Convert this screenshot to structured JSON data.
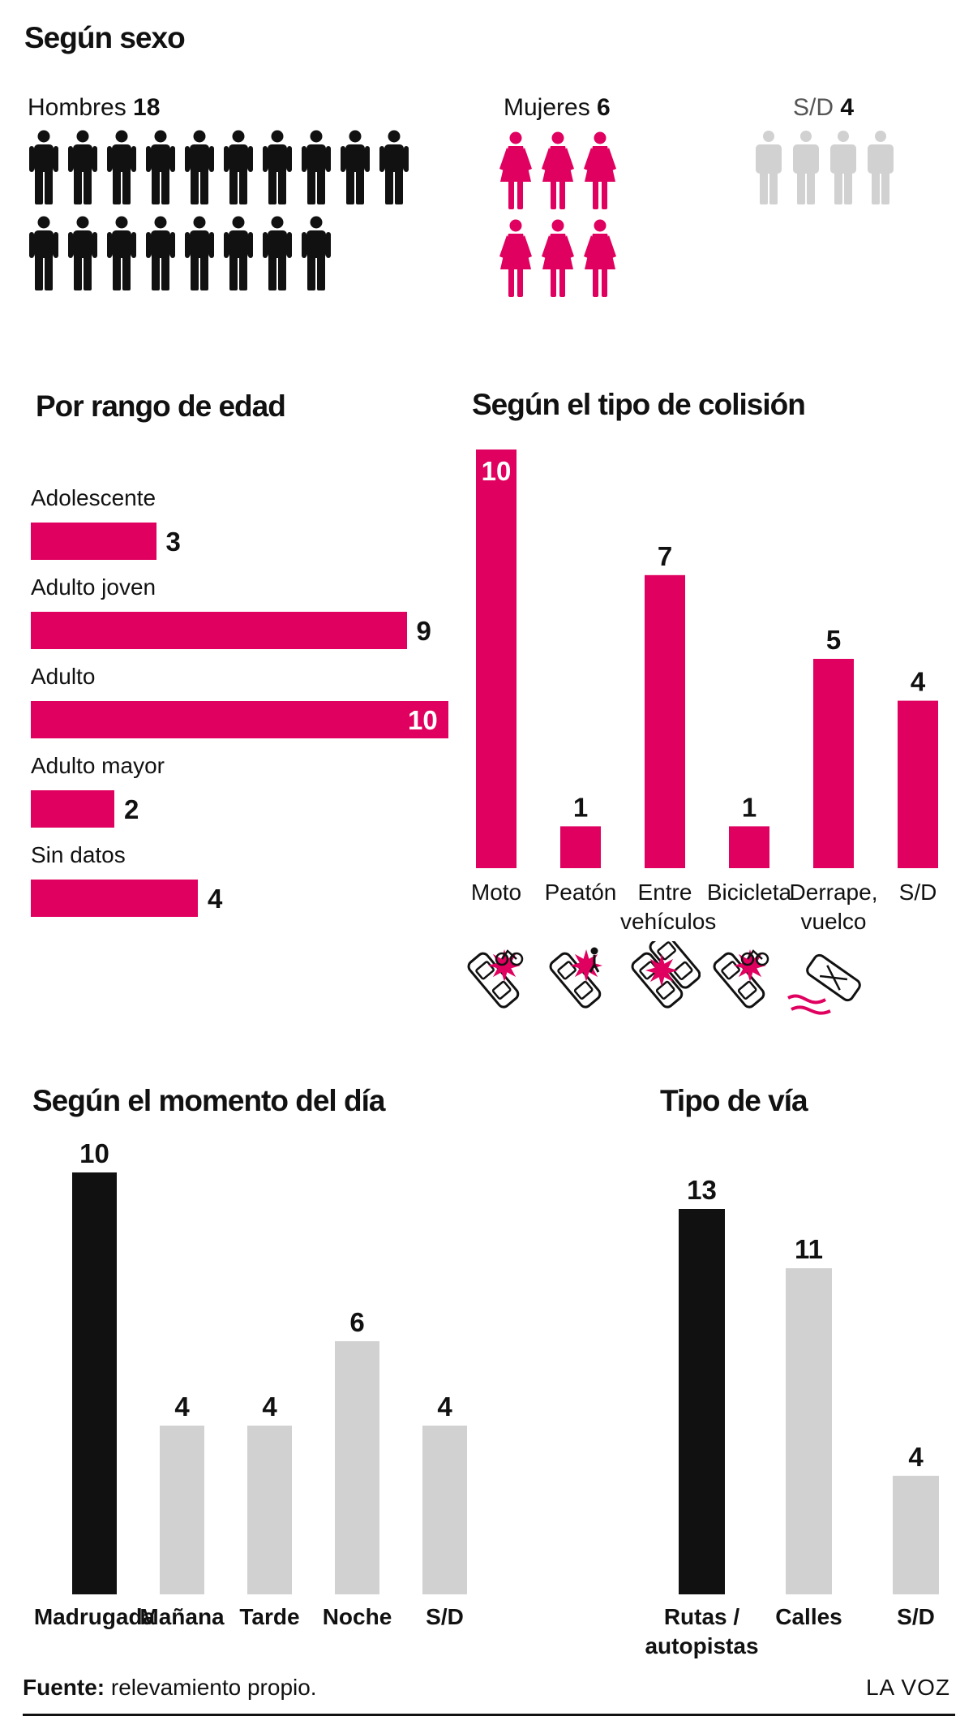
{
  "gender": {
    "title": "Según sexo",
    "groups": [
      {
        "label": "Hombres",
        "value": 18,
        "count": 18,
        "color": "#111111",
        "figure": "man"
      },
      {
        "label": "Mujeres",
        "value": 6,
        "count": 6,
        "color": "#e0005f",
        "figure": "woman"
      },
      {
        "label": "S/D",
        "value": 4,
        "count": 4,
        "color": "#d1d1d1",
        "figure": "person"
      }
    ]
  },
  "chart_data": [
    {
      "type": "bar",
      "orientation": "horizontal",
      "title": "Por rango de edad",
      "categories": [
        "Adolescente",
        "Adulto joven",
        "Adulto",
        "Adulto mayor",
        "Sin datos"
      ],
      "values": [
        3,
        9,
        10,
        2,
        4
      ],
      "value_labels": [
        "3",
        "9",
        "10",
        "2",
        "4"
      ],
      "xlim": [
        0,
        10
      ],
      "color": "#e0005f",
      "grid": false
    },
    {
      "type": "bar",
      "title": "Según el tipo de colisión",
      "categories": [
        "Moto",
        "Peatón",
        "Entre vehículos",
        "Bicicleta",
        "Derrape, vuelco",
        "S/D"
      ],
      "category_lines": [
        [
          "Moto"
        ],
        [
          "Peatón"
        ],
        [
          "Entre",
          "vehículos"
        ],
        [
          "Bicicleta"
        ],
        [
          "Derrape,",
          "vuelco"
        ],
        [
          "S/D"
        ]
      ],
      "values": [
        10,
        1,
        7,
        1,
        5,
        4
      ],
      "value_labels": [
        "10",
        "1",
        "7",
        "1",
        "5",
        "4"
      ],
      "icons": [
        "car-motorcycle-crash-icon",
        "car-pedestrian-crash-icon",
        "car-car-crash-icon",
        "car-bicycle-crash-icon",
        "car-skid-rollover-icon"
      ],
      "ylim": [
        0,
        10
      ],
      "color": "#e0005f",
      "grid": false
    },
    {
      "type": "bar",
      "title": "Según el momento del día",
      "categories": [
        "Madrugada",
        "Mañana",
        "Tarde",
        "Noche",
        "S/D"
      ],
      "values": [
        10,
        4,
        4,
        6,
        4
      ],
      "value_labels": [
        "10",
        "4",
        "4",
        "6",
        "4"
      ],
      "colors": [
        "#111111",
        "#d1d1d1",
        "#d1d1d1",
        "#d1d1d1",
        "#d1d1d1"
      ],
      "ylim": [
        0,
        10
      ],
      "grid": false
    },
    {
      "type": "bar",
      "title": "Tipo de vía",
      "categories": [
        "Rutas / autopistas",
        "Calles",
        "S/D"
      ],
      "category_lines": [
        [
          "Rutas /",
          "autopistas"
        ],
        [
          "Calles"
        ],
        [
          "S/D"
        ]
      ],
      "values": [
        13,
        11,
        4
      ],
      "value_labels": [
        "13",
        "11",
        "4"
      ],
      "colors": [
        "#111111",
        "#d1d1d1",
        "#d1d1d1"
      ],
      "ylim": [
        0,
        13
      ],
      "grid": false
    }
  ],
  "footer": {
    "source_label": "Fuente:",
    "source_text": "relevamiento propio.",
    "brand": "LA VOZ"
  }
}
